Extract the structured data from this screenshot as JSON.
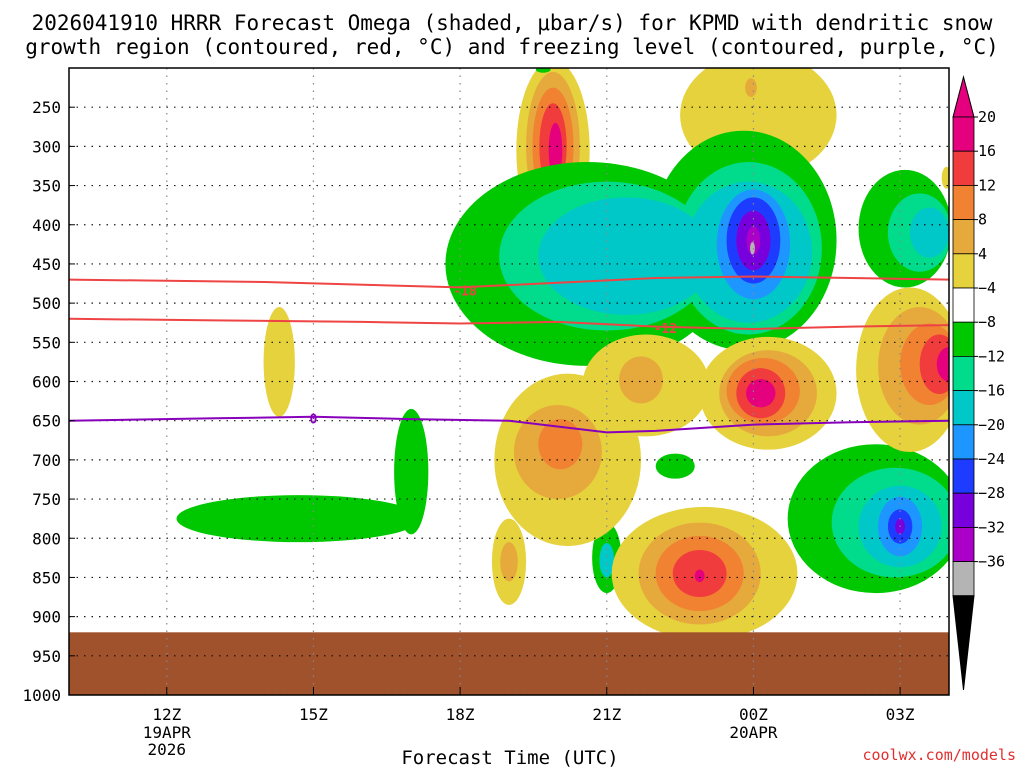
{
  "chart_data": {
    "type": "heatmap",
    "title_line1": "2026041910 HRRR Forecast Omega (shaded, μbar/s) for KPMD with dendritic snow",
    "title_line2": "growth region (contoured, red, °C) and freezing level (contoured, purple, °C)",
    "xlabel": "Forecast Time (UTC)",
    "ylabel": "",
    "x_range_hours": [
      10.0,
      28.0
    ],
    "y_range_mb": [
      200,
      1000
    ],
    "x_ticks": [
      {
        "hour": 12,
        "label": "12Z",
        "sub1": "19APR",
        "sub2": "2026"
      },
      {
        "hour": 15,
        "label": "15Z",
        "sub1": "",
        "sub2": ""
      },
      {
        "hour": 18,
        "label": "18Z",
        "sub1": "",
        "sub2": ""
      },
      {
        "hour": 21,
        "label": "21Z",
        "sub1": "",
        "sub2": ""
      },
      {
        "hour": 24,
        "label": "00Z",
        "sub1": "20APR",
        "sub2": ""
      },
      {
        "hour": 27,
        "label": "03Z",
        "sub1": "",
        "sub2": ""
      }
    ],
    "y_ticks": [
      250,
      300,
      350,
      400,
      450,
      500,
      550,
      600,
      650,
      700,
      750,
      800,
      850,
      900,
      950,
      1000
    ],
    "surface_pressure_mb": 920,
    "surface_color": "#a0522d",
    "colorbar": {
      "labels": [
        "20",
        "16",
        "12",
        "8",
        "4",
        "−4",
        "−8",
        "−12",
        "−16",
        "−20",
        "−24",
        "−28",
        "−32",
        "−36"
      ],
      "colors": [
        "#e5007d",
        "#f03c3c",
        "#f08232",
        "#e6aa3c",
        "#e6d23c",
        "#ffffff",
        "#00c800",
        "#00dc8c",
        "#00c8c8",
        "#1e96ff",
        "#1e3cff",
        "#7800dc",
        "#aa00c8",
        "#b4b4b4"
      ],
      "top_triangle": "#e5007d",
      "bottom_triangle": "#000000"
    },
    "omega_regions": [
      {
        "color": "#e6d23c",
        "x": 19.9,
        "p": 305,
        "rx": 0.75,
        "rp": 115
      },
      {
        "color": "#e6aa3c",
        "x": 19.9,
        "p": 300,
        "rx": 0.55,
        "rp": 95
      },
      {
        "color": "#f08232",
        "x": 19.9,
        "p": 300,
        "rx": 0.42,
        "rp": 75
      },
      {
        "color": "#f03c3c",
        "x": 19.9,
        "p": 300,
        "rx": 0.28,
        "rp": 55
      },
      {
        "color": "#e5007d",
        "x": 19.95,
        "p": 305,
        "rx": 0.14,
        "rp": 35
      },
      {
        "color": "#e6d23c",
        "x": 24.1,
        "p": 260,
        "rx": 1.6,
        "rp": 80
      },
      {
        "color": "#e6aa3c",
        "x": 23.95,
        "p": 225,
        "rx": 0.12,
        "rp": 12
      },
      {
        "color": "#e6d23c",
        "x": 14.3,
        "p": 575,
        "rx": 0.32,
        "rp": 70
      },
      {
        "color": "#00c800",
        "x": 20.6,
        "p": 450,
        "rx": 2.9,
        "rp": 130
      },
      {
        "color": "#00c800",
        "x": 23.8,
        "p": 420,
        "rx": 1.9,
        "rp": 140
      },
      {
        "color": "#00dc8c",
        "x": 21.0,
        "p": 440,
        "rx": 2.2,
        "rp": 95
      },
      {
        "color": "#00dc8c",
        "x": 23.9,
        "p": 430,
        "rx": 1.5,
        "rp": 110
      },
      {
        "color": "#00c8c8",
        "x": 21.4,
        "p": 440,
        "rx": 1.8,
        "rp": 75
      },
      {
        "color": "#00c8c8",
        "x": 23.9,
        "p": 435,
        "rx": 1.3,
        "rp": 90
      },
      {
        "color": "#1e96ff",
        "x": 24.0,
        "p": 425,
        "rx": 0.75,
        "rp": 70
      },
      {
        "color": "#1e3cff",
        "x": 24.0,
        "p": 420,
        "rx": 0.55,
        "rp": 55
      },
      {
        "color": "#7800dc",
        "x": 24.0,
        "p": 420,
        "rx": 0.35,
        "rp": 38
      },
      {
        "color": "#aa00c8",
        "x": 24.0,
        "p": 420,
        "rx": 0.14,
        "rp": 18
      },
      {
        "color": "#b4b4b4",
        "x": 23.98,
        "p": 430,
        "rx": 0.05,
        "rp": 8
      },
      {
        "color": "#00c800",
        "x": 27.1,
        "p": 405,
        "rx": 0.95,
        "rp": 75
      },
      {
        "color": "#00dc8c",
        "x": 27.4,
        "p": 410,
        "rx": 0.65,
        "rp": 50
      },
      {
        "color": "#00c8c8",
        "x": 27.6,
        "p": 410,
        "rx": 0.4,
        "rp": 32
      },
      {
        "color": "#00c800",
        "x": 14.7,
        "p": 775,
        "rx": 2.5,
        "rp": 30
      },
      {
        "color": "#00c800",
        "x": 17.0,
        "p": 715,
        "rx": 0.35,
        "rp": 80
      },
      {
        "color": "#00c800",
        "x": 22.4,
        "p": 708,
        "rx": 0.4,
        "rp": 16
      },
      {
        "color": "#00c800",
        "x": 26.5,
        "p": 775,
        "rx": 1.8,
        "rp": 95
      },
      {
        "color": "#00dc8c",
        "x": 26.9,
        "p": 780,
        "rx": 1.3,
        "rp": 70
      },
      {
        "color": "#00c8c8",
        "x": 27.0,
        "p": 785,
        "rx": 0.85,
        "rp": 52
      },
      {
        "color": "#1e96ff",
        "x": 27.0,
        "p": 785,
        "rx": 0.45,
        "rp": 38
      },
      {
        "color": "#1e3cff",
        "x": 27.0,
        "p": 785,
        "rx": 0.25,
        "rp": 22
      },
      {
        "color": "#7800dc",
        "x": 27.0,
        "p": 785,
        "rx": 0.1,
        "rp": 10
      },
      {
        "color": "#00c800",
        "x": 21.0,
        "p": 825,
        "rx": 0.3,
        "rp": 45
      },
      {
        "color": "#00c8c8",
        "x": 21.0,
        "p": 828,
        "rx": 0.15,
        "rp": 22
      },
      {
        "color": "#e6d23c",
        "x": 20.2,
        "p": 700,
        "rx": 1.5,
        "rp": 110
      },
      {
        "color": "#e6aa3c",
        "x": 20.0,
        "p": 690,
        "rx": 0.9,
        "rp": 60
      },
      {
        "color": "#f08232",
        "x": 20.05,
        "p": 680,
        "rx": 0.45,
        "rp": 32
      },
      {
        "color": "#e6d23c",
        "x": 19.0,
        "p": 830,
        "rx": 0.35,
        "rp": 55
      },
      {
        "color": "#e6aa3c",
        "x": 19.0,
        "p": 830,
        "rx": 0.18,
        "rp": 25
      },
      {
        "color": "#e6d23c",
        "x": 21.8,
        "p": 605,
        "rx": 1.3,
        "rp": 65
      },
      {
        "color": "#e6aa3c",
        "x": 21.7,
        "p": 598,
        "rx": 0.45,
        "rp": 30
      },
      {
        "color": "#e6d23c",
        "x": 24.3,
        "p": 615,
        "rx": 1.4,
        "rp": 72
      },
      {
        "color": "#e6aa3c",
        "x": 24.3,
        "p": 615,
        "rx": 1.0,
        "rp": 55
      },
      {
        "color": "#f08232",
        "x": 24.2,
        "p": 612,
        "rx": 0.75,
        "rp": 42
      },
      {
        "color": "#f03c3c",
        "x": 24.15,
        "p": 615,
        "rx": 0.5,
        "rp": 32
      },
      {
        "color": "#e5007d",
        "x": 24.15,
        "p": 615,
        "rx": 0.3,
        "rp": 18
      },
      {
        "color": "#e6d23c",
        "x": 23.0,
        "p": 845,
        "rx": 1.9,
        "rp": 85
      },
      {
        "color": "#e6aa3c",
        "x": 22.9,
        "p": 845,
        "rx": 1.25,
        "rp": 65
      },
      {
        "color": "#f08232",
        "x": 22.9,
        "p": 845,
        "rx": 0.9,
        "rp": 48
      },
      {
        "color": "#f03c3c",
        "x": 22.9,
        "p": 845,
        "rx": 0.55,
        "rp": 30
      },
      {
        "color": "#e5007d",
        "x": 22.9,
        "p": 848,
        "rx": 0.1,
        "rp": 8
      },
      {
        "color": "#e6d23c",
        "x": 27.2,
        "p": 585,
        "rx": 1.1,
        "rp": 105
      },
      {
        "color": "#e6aa3c",
        "x": 27.4,
        "p": 580,
        "rx": 0.85,
        "rp": 75
      },
      {
        "color": "#f08232",
        "x": 27.6,
        "p": 578,
        "rx": 0.6,
        "rp": 52
      },
      {
        "color": "#f03c3c",
        "x": 27.8,
        "p": 578,
        "rx": 0.4,
        "rp": 38
      },
      {
        "color": "#e5007d",
        "x": 28.0,
        "p": 578,
        "rx": 0.25,
        "rp": 22
      },
      {
        "color": "#00c800",
        "x": 19.7,
        "p": 202,
        "rx": 0.15,
        "rp": 4
      },
      {
        "color": "#e6d23c",
        "x": 27.95,
        "p": 340,
        "rx": 0.1,
        "rp": 14
      }
    ],
    "contours": [
      {
        "name": "dgz-minus18",
        "label": "-18",
        "color": "#ee4444",
        "label_x": 18.1,
        "label_p": 484,
        "points": [
          [
            10.0,
            470
          ],
          [
            14.0,
            473
          ],
          [
            18.0,
            480
          ],
          [
            20.0,
            474
          ],
          [
            22.0,
            468
          ],
          [
            24.0,
            466
          ],
          [
            26.0,
            468
          ],
          [
            28.0,
            470
          ]
        ]
      },
      {
        "name": "dgz-minus12",
        "label": "-12",
        "color": "#ee4444",
        "label_x": 22.2,
        "label_p": 532,
        "points": [
          [
            10.0,
            520
          ],
          [
            13.0,
            522
          ],
          [
            16.0,
            524
          ],
          [
            18.0,
            526
          ],
          [
            20.0,
            524
          ],
          [
            22.0,
            530
          ],
          [
            24.0,
            533
          ],
          [
            26.0,
            530
          ],
          [
            28.0,
            528
          ]
        ]
      },
      {
        "name": "freezing-level",
        "label": "0",
        "color": "#8800bb",
        "label_x": 15.0,
        "label_p": 647,
        "points": [
          [
            10.0,
            650
          ],
          [
            13.0,
            647
          ],
          [
            15.0,
            645
          ],
          [
            17.0,
            648
          ],
          [
            19.0,
            650
          ],
          [
            21.0,
            665
          ],
          [
            22.0,
            663
          ],
          [
            24.0,
            655
          ],
          [
            26.0,
            652
          ],
          [
            28.0,
            650
          ]
        ]
      }
    ]
  },
  "credit": "coolwx.com/models"
}
